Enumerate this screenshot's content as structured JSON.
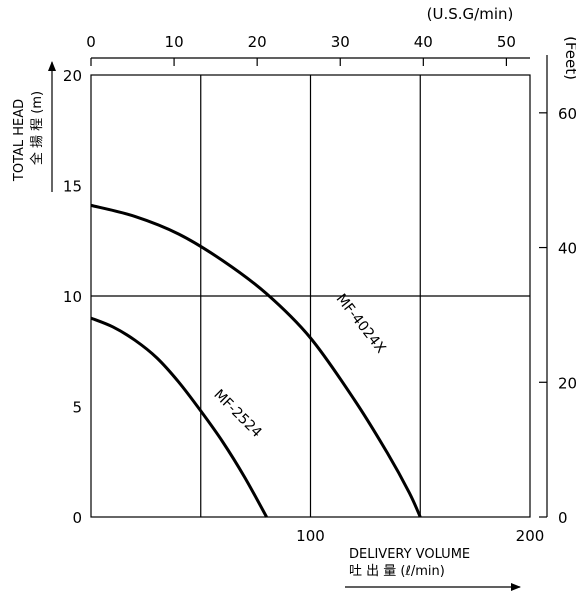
{
  "chart_data": {
    "type": "line",
    "title": "",
    "xlabel": "DELIVERY VOLUME",
    "xlabel_ja": "吐 出 量 (ℓ/min)",
    "ylabel": "TOTAL HEAD",
    "ylabel_ja": "全 揚 程 (m)",
    "x_top_unit": "(U.S.G/min)",
    "y_right_unit": "(Feet)",
    "xlim": [
      0,
      200
    ],
    "ylim": [
      0,
      20
    ],
    "x_ticks": [
      "100",
      "200"
    ],
    "y_ticks": [
      "0",
      "5",
      "10",
      "15",
      "20"
    ],
    "x_top_ticks": [
      "0",
      "10",
      "20",
      "30",
      "40",
      "50"
    ],
    "y_right_ticks": [
      "0",
      "20",
      "40",
      "60"
    ],
    "grid_x": [
      50,
      100,
      150
    ],
    "grid_y": [
      10
    ],
    "grid": true,
    "series": [
      {
        "name": "MF-4024X",
        "x": [
          0,
          20,
          40,
          60,
          80,
          100,
          120,
          135,
          145,
          150
        ],
        "y": [
          14.1,
          13.6,
          12.8,
          11.6,
          10.1,
          8.1,
          5.3,
          2.9,
          1.1,
          0
        ]
      },
      {
        "name": "MF-2524",
        "x": [
          0,
          10,
          20,
          30,
          40,
          50,
          60,
          70,
          80
        ],
        "y": [
          9.0,
          8.6,
          8.0,
          7.2,
          6.1,
          4.8,
          3.4,
          1.8,
          0
        ]
      }
    ]
  }
}
